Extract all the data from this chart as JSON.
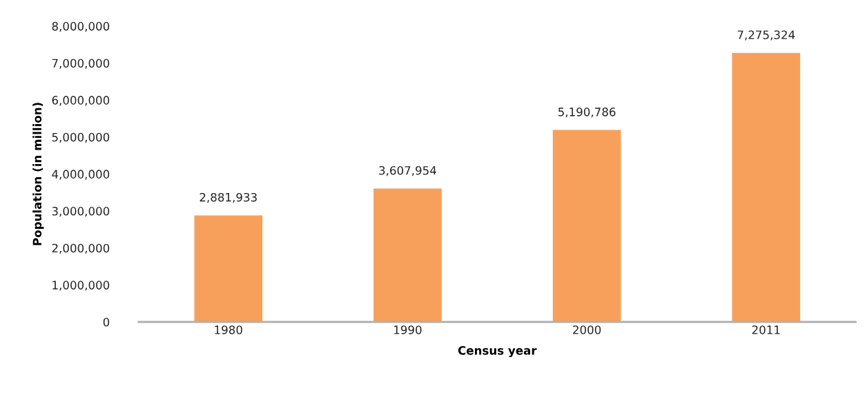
{
  "chart_data": {
    "type": "bar",
    "xlabel": "Census year",
    "ylabel": "Population (in million)",
    "categories": [
      "1980",
      "1990",
      "2000",
      "2011"
    ],
    "values": [
      2881933,
      3607954,
      5190786,
      7275324
    ],
    "value_labels": [
      "2,881,933",
      "3,607,954",
      "5,190,786",
      "7,275,324"
    ],
    "color": "#f7a05c",
    "ylim": [
      0,
      8000000
    ],
    "yticks": [
      {
        "value": 0,
        "label": "0"
      },
      {
        "value": 1000000,
        "label": "1,000,000"
      },
      {
        "value": 2000000,
        "label": "2,000,000"
      },
      {
        "value": 3000000,
        "label": "3,000,000"
      },
      {
        "value": 4000000,
        "label": "4,000,000"
      },
      {
        "value": 5000000,
        "label": "5,000,000"
      },
      {
        "value": 6000000,
        "label": "6,000,000"
      },
      {
        "value": 7000000,
        "label": "7,000,000"
      },
      {
        "value": 8000000,
        "label": "8,000,000"
      }
    ],
    "grid": false
  }
}
